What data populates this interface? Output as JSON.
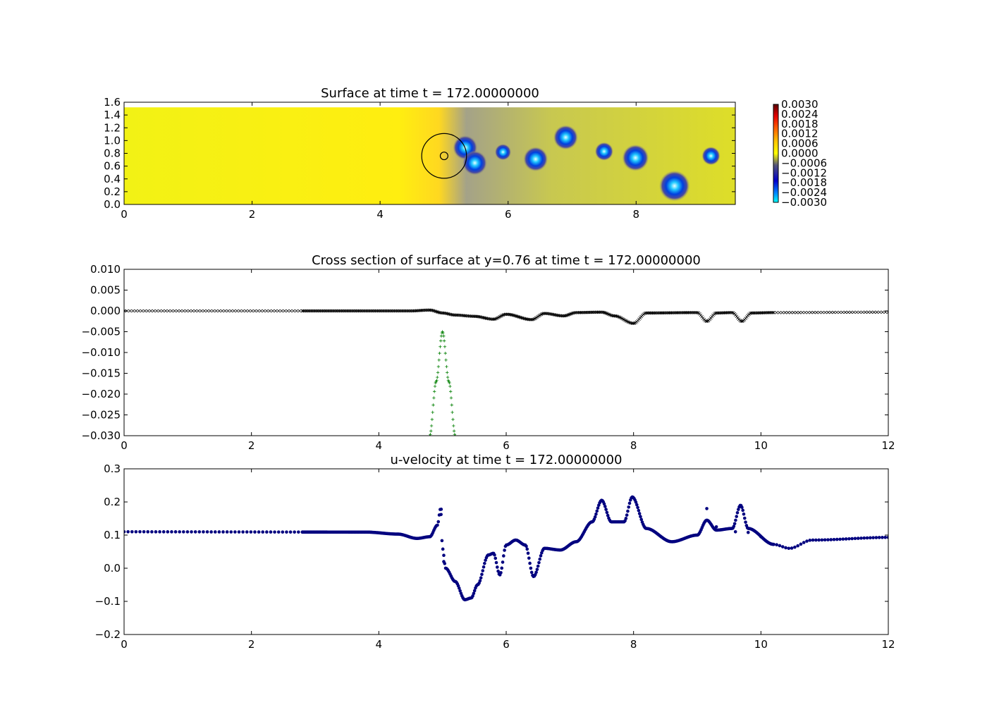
{
  "chart_data": [
    {
      "type": "heatmap",
      "title": "Surface at time t =   172.00000000",
      "xlim": [
        0,
        9.55
      ],
      "ylim": [
        0,
        1.6
      ],
      "x_ticks": [
        "0",
        "2",
        "4",
        "6",
        "8"
      ],
      "y_ticks": [
        "0.0",
        "0.2",
        "0.4",
        "0.6",
        "0.8",
        "1.0",
        "1.2",
        "1.4",
        "1.6"
      ],
      "domain_y_max": 1.52,
      "colorbar": {
        "range": [
          -0.003,
          0.003
        ],
        "ticks": [
          "0.0030",
          "0.0024",
          "0.0018",
          "0.0012",
          "0.0006",
          "0.0000",
          "−0.0006",
          "−0.0012",
          "−0.0018",
          "−0.0024",
          "−0.0030"
        ]
      },
      "obstacle": {
        "x": 5.0,
        "y": 0.76,
        "r_outer": 0.35,
        "r_inner": 0.06
      },
      "vortices": [
        {
          "x": 5.33,
          "y": 0.89,
          "r": 0.12
        },
        {
          "x": 5.48,
          "y": 0.65,
          "r": 0.12
        },
        {
          "x": 5.92,
          "y": 0.82,
          "r": 0.08
        },
        {
          "x": 6.43,
          "y": 0.71,
          "r": 0.12
        },
        {
          "x": 6.9,
          "y": 1.05,
          "r": 0.12
        },
        {
          "x": 7.5,
          "y": 0.83,
          "r": 0.09
        },
        {
          "x": 7.99,
          "y": 0.73,
          "r": 0.13
        },
        {
          "x": 8.6,
          "y": 0.29,
          "r": 0.15
        },
        {
          "x": 9.17,
          "y": 0.76,
          "r": 0.09
        }
      ],
      "colors": {
        "background": "#ecec14",
        "wake": "#a8a880",
        "upstream": "#ffe61a"
      }
    },
    {
      "type": "scatter",
      "title": "Cross section of surface at y=0.76 at time t =   172.00000000",
      "xlim": [
        0,
        12
      ],
      "ylim": [
        -0.03,
        0.01
      ],
      "x_ticks": [
        "0",
        "2",
        "4",
        "6",
        "8",
        "10",
        "12"
      ],
      "y_ticks": [
        "−0.030",
        "−0.025",
        "−0.020",
        "−0.015",
        "−0.010",
        "−0.005",
        "0.000",
        "0.005",
        "0.010"
      ],
      "series": [
        {
          "marker": "x",
          "color": "#000000",
          "segments": [
            {
              "x0": 0,
              "x1": 2.8,
              "n": 60
            },
            {
              "x0": 2.8,
              "x1": 10.2,
              "n": 420
            },
            {
              "x0": 10.2,
              "x1": 12,
              "n": 40
            }
          ],
          "profile": [
            [
              0,
              0.0
            ],
            [
              4.5,
              0.0
            ],
            [
              4.8,
              0.0002
            ],
            [
              5.0,
              -0.0005
            ],
            [
              5.2,
              -0.001
            ],
            [
              5.5,
              -0.0013
            ],
            [
              5.8,
              -0.002
            ],
            [
              6.0,
              -0.0008
            ],
            [
              6.4,
              -0.0021
            ],
            [
              6.6,
              -0.0006
            ],
            [
              6.9,
              -0.0012
            ],
            [
              7.1,
              -0.0004
            ],
            [
              7.5,
              -0.0003
            ],
            [
              7.7,
              -0.0012
            ],
            [
              8.0,
              -0.003
            ],
            [
              8.2,
              -0.0005
            ],
            [
              9.0,
              -0.0004
            ],
            [
              9.15,
              -0.0025
            ],
            [
              9.3,
              -0.0005
            ],
            [
              9.55,
              -0.0004
            ],
            [
              9.7,
              -0.0025
            ],
            [
              9.85,
              -0.0005
            ],
            [
              10.2,
              -0.0004
            ],
            [
              12,
              -0.0003
            ]
          ]
        },
        {
          "marker": "+",
          "color": "#007f00",
          "profile": [
            [
              4.8,
              -0.03
            ],
            [
              4.9,
              -0.017
            ],
            [
              5.0,
              -0.005
            ],
            [
              5.1,
              -0.017
            ],
            [
              5.2,
              -0.03
            ]
          ]
        }
      ]
    },
    {
      "type": "scatter",
      "title": "u-velocity at time t =   172.00000000",
      "xlim": [
        0,
        12
      ],
      "ylim": [
        -0.2,
        0.3
      ],
      "x_ticks": [
        "0",
        "2",
        "4",
        "6",
        "8",
        "10",
        "12"
      ],
      "y_ticks": [
        "−0.2",
        "−0.1",
        "0.0",
        "0.1",
        "0.2",
        "0.3"
      ],
      "series": [
        {
          "marker": "o",
          "color": "#00007f",
          "segments": [
            {
              "x0": 0,
              "x1": 2.8,
              "n": 45
            },
            {
              "x0": 2.8,
              "x1": 10.2,
              "n": 520
            },
            {
              "x0": 10.2,
              "x1": 12,
              "n": 38
            }
          ],
          "profile": [
            [
              0,
              0.11
            ],
            [
              3.8,
              0.109
            ],
            [
              4.3,
              0.103
            ],
            [
              4.6,
              0.09
            ],
            [
              4.8,
              0.095
            ],
            [
              4.92,
              0.13
            ],
            [
              4.97,
              0.18
            ],
            [
              5.0,
              0.06
            ],
            [
              5.05,
              0.0
            ],
            [
              5.2,
              -0.04
            ],
            [
              5.35,
              -0.095
            ],
            [
              5.45,
              -0.09
            ],
            [
              5.55,
              -0.05
            ],
            [
              5.72,
              0.04
            ],
            [
              5.8,
              0.045
            ],
            [
              5.9,
              -0.02
            ],
            [
              6.0,
              0.07
            ],
            [
              6.15,
              0.085
            ],
            [
              6.3,
              0.07
            ],
            [
              6.43,
              -0.025
            ],
            [
              6.6,
              0.06
            ],
            [
              6.85,
              0.055
            ],
            [
              7.1,
              0.08
            ],
            [
              7.35,
              0.14
            ],
            [
              7.5,
              0.205
            ],
            [
              7.65,
              0.14
            ],
            [
              7.85,
              0.14
            ],
            [
              7.98,
              0.215
            ],
            [
              8.2,
              0.12
            ],
            [
              8.6,
              0.08
            ],
            [
              9.0,
              0.1
            ],
            [
              9.15,
              0.145
            ],
            [
              9.3,
              0.115
            ],
            [
              9.55,
              0.12
            ],
            [
              9.68,
              0.19
            ],
            [
              9.8,
              0.12
            ],
            [
              10.2,
              0.072
            ],
            [
              10.45,
              0.06
            ],
            [
              10.8,
              0.085
            ],
            [
              12,
              0.093
            ]
          ],
          "extra_points": [
            {
              "x": 9.15,
              "y": 0.18
            },
            {
              "x": 9.3,
              "y": 0.125
            },
            {
              "x": 9.6,
              "y": 0.11
            },
            {
              "x": 9.8,
              "y": 0.108
            },
            {
              "x": 10.0,
              "y": 0.095
            },
            {
              "x": 5.02,
              "y": 0.02
            },
            {
              "x": 4.98,
              "y": 0.178
            }
          ]
        }
      ]
    }
  ]
}
